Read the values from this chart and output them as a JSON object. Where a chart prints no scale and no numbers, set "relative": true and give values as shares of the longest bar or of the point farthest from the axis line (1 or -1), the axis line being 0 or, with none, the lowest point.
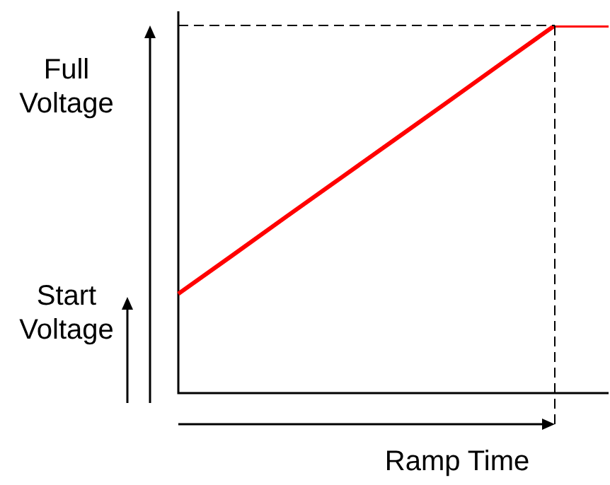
{
  "chart_data": {
    "type": "line",
    "relative": true,
    "xlabel": "Ramp Time",
    "categories": [
      null,
      null,
      null,
      null,
      null,
      null,
      null,
      null,
      null
    ],
    "series": [
      {
        "color": "#ff0000",
        "values": [
          0.27,
          0.374,
          0.479,
          0.583,
          0.687,
          0.791,
          0.896,
          1,
          1
        ]
      }
    ],
    "annotations": [
      "Full Voltage",
      "Start Voltage"
    ],
    "marker": "none",
    "line_style": "solid"
  }
}
